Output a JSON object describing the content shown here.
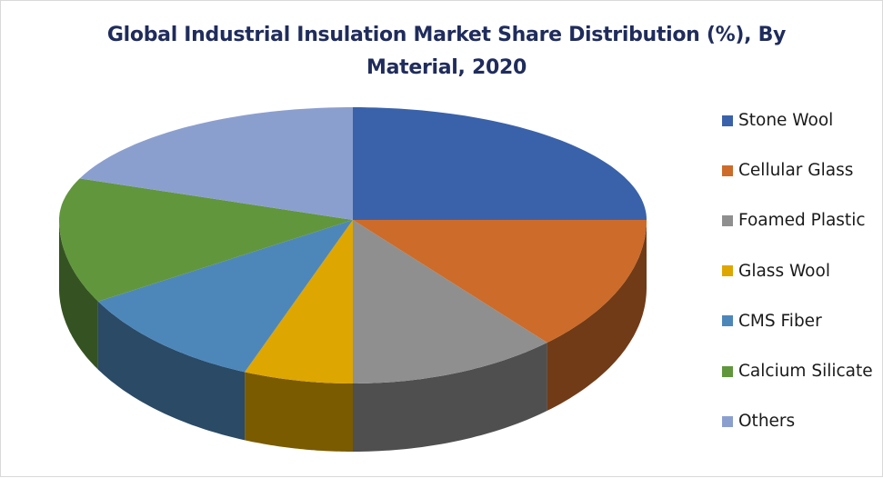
{
  "chart_data": {
    "type": "pie",
    "subtype": "3d-pie",
    "title": "Global Industrial Insulation Market Share Distribution (%), By Material, 2020",
    "title_lines": [
      "Global Industrial Insulation Market Share Distribution (%), By",
      "Material, 2020"
    ],
    "categories": [
      "Stone Wool",
      "Cellular Glass",
      "Foamed Plastic",
      "Glass Wool",
      "CMS Fiber",
      "Calcium Silicate",
      "Others"
    ],
    "values": [
      25.0,
      13.5,
      11.5,
      6.0,
      10.7,
      14.3,
      19.0
    ],
    "unit": "%",
    "data_labels_shown": false,
    "legend_position": "right",
    "start_angle_deg": 0,
    "direction": "clockwise"
  },
  "colors": {
    "Stone Wool": "#3a62aa",
    "Cellular Glass": "#cd6b2a",
    "Foamed Plastic": "#8f8f8f",
    "Glass Wool": "#dea600",
    "CMS Fiber": "#4d87ba",
    "Calcium Silicate": "#61963d",
    "Others": "#8b9fcf"
  },
  "legend": {
    "items": [
      {
        "label": "Stone Wool",
        "color": "#3a62aa"
      },
      {
        "label": "Cellular Glass",
        "color": "#cd6b2a"
      },
      {
        "label": "Foamed Plastic",
        "color": "#8f8f8f"
      },
      {
        "label": "Glass Wool",
        "color": "#dea600"
      },
      {
        "label": "CMS Fiber",
        "color": "#4d87ba"
      },
      {
        "label": "Calcium Silicate",
        "color": "#61963d"
      },
      {
        "label": "Others",
        "color": "#8b9fcf"
      }
    ]
  }
}
